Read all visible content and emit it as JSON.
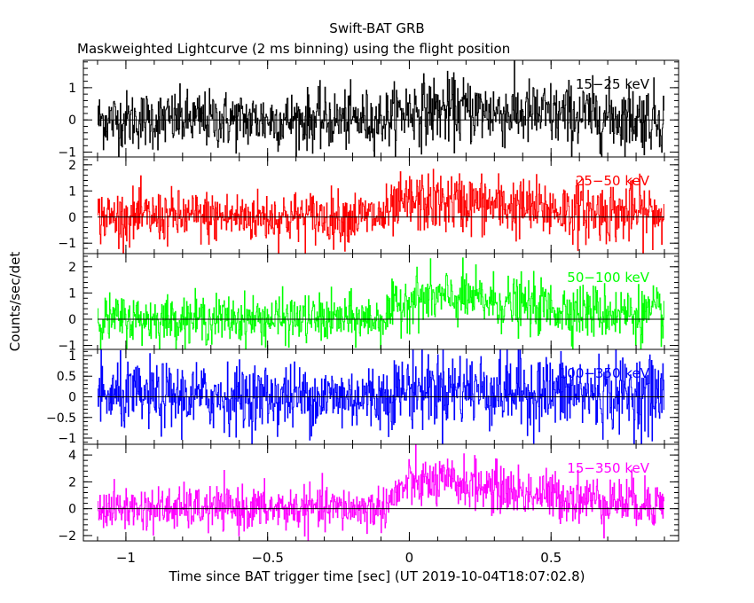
{
  "title": "Swift-BAT GRB",
  "subtitle": "Maskweighted Lightcurve (2 ms binning) using the flight position",
  "ylabel": "Counts/sec/det",
  "xlabel": "Time since BAT trigger time [sec] (UT 2019-10-04T18:07:02.8)",
  "chart_data": {
    "type": "line",
    "title": "Swift-BAT GRB",
    "subtitle": "Maskweighted Lightcurve (2 ms binning) using the flight position",
    "xlabel": "Time since BAT trigger time [sec] (UT 2019-10-04T18:07:02.8)",
    "ylabel": "Counts/sec/det",
    "xlim": [
      -1.15,
      0.95
    ],
    "data_range": [
      -1.1,
      0.9
    ],
    "bin_size": 0.002,
    "x_ticks": [
      -1,
      -0.5,
      0,
      0.5
    ],
    "x_tick_labels": [
      "−1",
      "−0.5",
      "0",
      "0.5"
    ],
    "grid": false,
    "panels": [
      {
        "name": "15−25 keV",
        "color": "#000000",
        "ylim": [
          -1.15,
          1.85
        ],
        "yticks": [
          -1,
          0,
          1
        ],
        "ytick_labels": [
          "−1",
          "0",
          "1"
        ],
        "noise": 0.45,
        "peak": 0.3,
        "zero_line": 0
      },
      {
        "name": "25−50 keV",
        "color": "#ff0000",
        "ylim": [
          -1.4,
          2.3
        ],
        "yticks": [
          -1,
          0,
          1,
          2
        ],
        "ytick_labels": [
          "−1",
          "0",
          "1",
          "2"
        ],
        "noise": 0.5,
        "peak": 0.55,
        "zero_line": 0
      },
      {
        "name": "50−100 keV",
        "color": "#00ff00",
        "ylim": [
          -1.15,
          2.5
        ],
        "yticks": [
          -1,
          0,
          1,
          2
        ],
        "ytick_labels": [
          "−1",
          "0",
          "1",
          "2"
        ],
        "noise": 0.45,
        "peak": 0.8,
        "zero_line": 0
      },
      {
        "name": "100−350 keV",
        "color": "#0000ff",
        "ylim": [
          -1.15,
          1.15
        ],
        "yticks": [
          -1,
          -0.5,
          0,
          0.5,
          1
        ],
        "ytick_labels": [
          "−1",
          "−0.5",
          "0",
          "0.5",
          "1"
        ],
        "noise": 0.4,
        "peak": 0.2,
        "zero_line": 0
      },
      {
        "name": "15−350 keV",
        "color": "#ff00ff",
        "ylim": [
          -2.4,
          4.8
        ],
        "yticks": [
          -2,
          0,
          2,
          4
        ],
        "ytick_labels": [
          "−2",
          "0",
          "2",
          "4"
        ],
        "noise": 0.8,
        "peak": 1.9,
        "zero_line": 0
      }
    ]
  }
}
